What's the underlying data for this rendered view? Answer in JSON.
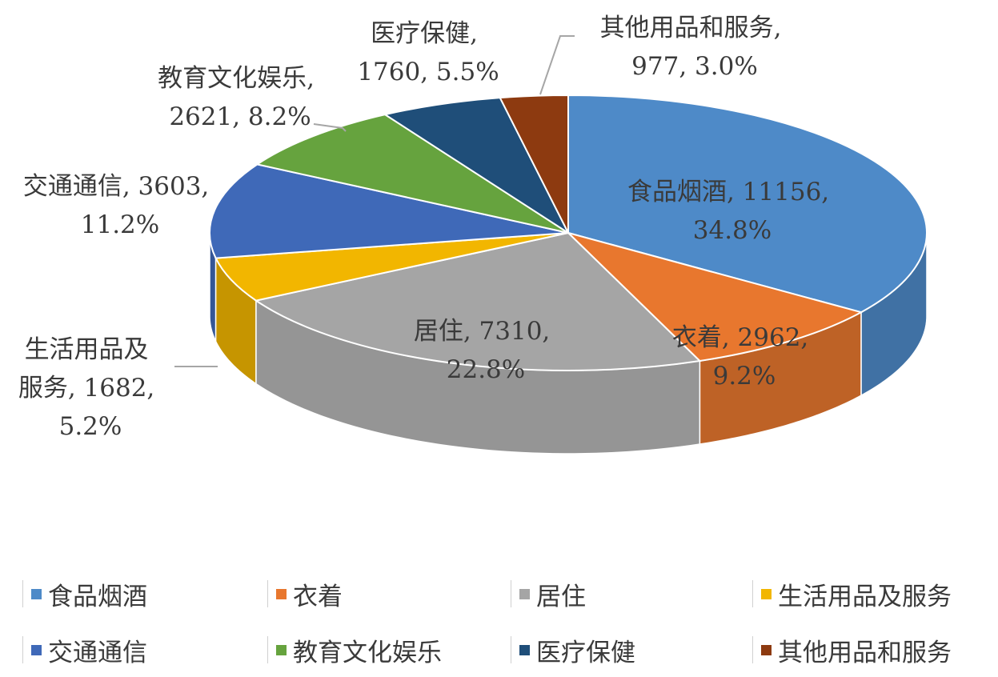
{
  "chart_data": {
    "type": "pie",
    "title": "",
    "categories": [
      "食品烟酒",
      "衣着",
      "居住",
      "生活用品及服务",
      "交通通信",
      "教育文化娱乐",
      "医疗保健",
      "其他用品和服务"
    ],
    "values": [
      11156,
      2962,
      7310,
      1682,
      3603,
      2621,
      1760,
      977
    ],
    "percents": [
      "34.8%",
      "9.2%",
      "22.8%",
      "5.2%",
      "11.2%",
      "8.2%",
      "5.5%",
      "3.0%"
    ],
    "colors": [
      "#4e8ac8",
      "#e8772e",
      "#a5a5a5",
      "#f2b600",
      "#3f69b8",
      "#66a33e",
      "#1f4e79",
      "#8d3a10"
    ],
    "legend_position": "bottom",
    "labels": {
      "food": [
        "食品烟酒, 11156,",
        "34.8%"
      ],
      "clothing": [
        "衣着, 2962,",
        "9.2%"
      ],
      "housing": [
        "居住, 7310,",
        "22.8%"
      ],
      "household": [
        "生活用品及",
        "服务, 1682,",
        "5.2%"
      ],
      "transport": [
        "交通通信, 3603,",
        "11.2%"
      ],
      "education": [
        "教育文化娱乐,",
        "2621, 8.2%"
      ],
      "medical": [
        "医疗保健,",
        "1760, 5.5%"
      ],
      "other": [
        "其他用品和服务,",
        "977, 3.0%"
      ]
    }
  }
}
